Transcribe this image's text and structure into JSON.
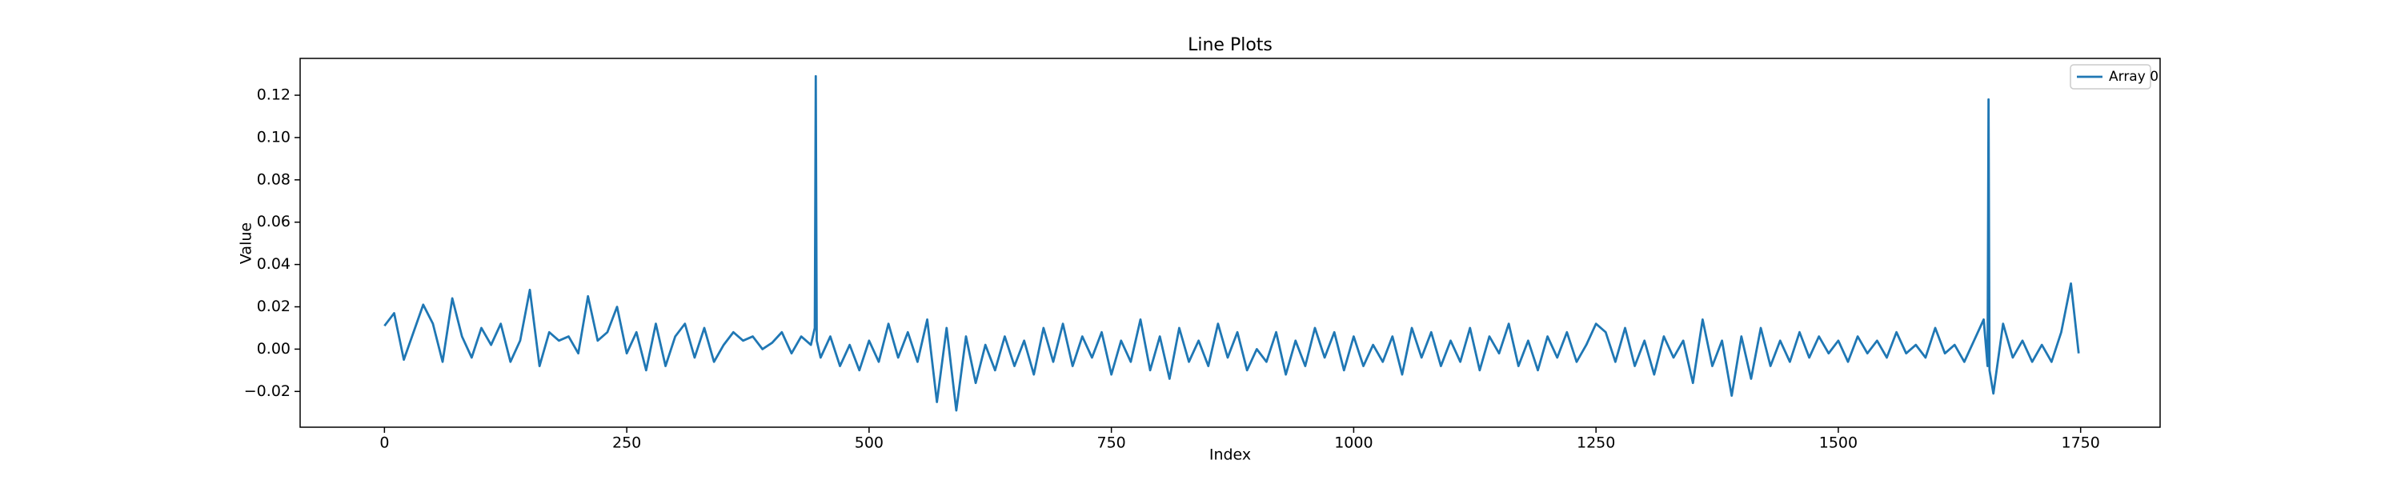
{
  "chart_data": {
    "type": "line",
    "title": "Line Plots",
    "x_label": "Index",
    "y_label": "Value",
    "xlim": [
      -87,
      1832
    ],
    "ylim": [
      -0.0369,
      0.1374
    ],
    "xticks": [
      0,
      250,
      500,
      750,
      1000,
      1250,
      1500,
      1750
    ],
    "yticks": [
      {
        "value": -0.02,
        "label": "−0.02"
      },
      {
        "value": 0,
        "label": "0.00"
      },
      0.02,
      0.04,
      0.06,
      0.08,
      {
        "value": 0.1,
        "label": "0.10"
      },
      0.12
    ],
    "legend": "upper right",
    "grid": false,
    "x": [
      0,
      10,
      20,
      30,
      40,
      50,
      60,
      70,
      80,
      90,
      100,
      110,
      120,
      130,
      140,
      150,
      160,
      170,
      180,
      190,
      200,
      210,
      220,
      230,
      240,
      250,
      260,
      270,
      280,
      290,
      300,
      310,
      320,
      330,
      340,
      350,
      360,
      370,
      380,
      390,
      400,
      410,
      420,
      430,
      440,
      444,
      445,
      446,
      450,
      460,
      470,
      480,
      490,
      500,
      510,
      520,
      530,
      540,
      550,
      560,
      570,
      580,
      590,
      600,
      610,
      620,
      630,
      640,
      650,
      660,
      670,
      680,
      690,
      700,
      710,
      720,
      730,
      740,
      750,
      760,
      770,
      780,
      790,
      800,
      810,
      820,
      830,
      840,
      850,
      860,
      870,
      880,
      890,
      900,
      910,
      920,
      930,
      940,
      950,
      960,
      970,
      980,
      990,
      1000,
      1010,
      1020,
      1030,
      1040,
      1050,
      1060,
      1070,
      1080,
      1090,
      1100,
      1110,
      1120,
      1130,
      1140,
      1150,
      1160,
      1170,
      1180,
      1190,
      1200,
      1210,
      1220,
      1230,
      1240,
      1250,
      1260,
      1270,
      1280,
      1290,
      1300,
      1310,
      1320,
      1330,
      1340,
      1350,
      1360,
      1370,
      1380,
      1390,
      1400,
      1410,
      1420,
      1430,
      1440,
      1450,
      1460,
      1470,
      1480,
      1490,
      1500,
      1510,
      1520,
      1530,
      1540,
      1550,
      1560,
      1570,
      1580,
      1590,
      1600,
      1610,
      1620,
      1630,
      1640,
      1650,
      1654,
      1655,
      1656,
      1660,
      1670,
      1680,
      1690,
      1700,
      1710,
      1720,
      1730,
      1740,
      1748
    ],
    "series": [
      {
        "name": "Array 0",
        "color": "#1f77b4",
        "values": [
          0.011,
          0.017,
          -0.005,
          0.008,
          0.021,
          0.012,
          -0.006,
          0.024,
          0.006,
          -0.004,
          0.01,
          0.002,
          0.012,
          -0.006,
          0.004,
          0.028,
          -0.008,
          0.008,
          0.004,
          0.006,
          -0.002,
          0.025,
          0.004,
          0.008,
          0.02,
          -0.002,
          0.008,
          -0.01,
          0.012,
          -0.008,
          0.006,
          0.012,
          -0.004,
          0.01,
          -0.006,
          0.002,
          0.008,
          0.004,
          0.006,
          0.0,
          0.003,
          0.008,
          -0.002,
          0.006,
          0.002,
          0.01,
          0.129,
          0.004,
          -0.004,
          0.006,
          -0.008,
          0.002,
          -0.01,
          0.004,
          -0.006,
          0.012,
          -0.004,
          0.008,
          -0.006,
          0.014,
          -0.025,
          0.01,
          -0.029,
          0.006,
          -0.016,
          0.002,
          -0.01,
          0.006,
          -0.008,
          0.004,
          -0.012,
          0.01,
          -0.006,
          0.012,
          -0.008,
          0.006,
          -0.004,
          0.008,
          -0.012,
          0.004,
          -0.006,
          0.014,
          -0.01,
          0.006,
          -0.014,
          0.01,
          -0.006,
          0.004,
          -0.008,
          0.012,
          -0.004,
          0.008,
          -0.01,
          0.0,
          -0.006,
          0.008,
          -0.012,
          0.004,
          -0.008,
          0.01,
          -0.004,
          0.008,
          -0.01,
          0.006,
          -0.008,
          0.002,
          -0.006,
          0.006,
          -0.012,
          0.01,
          -0.004,
          0.008,
          -0.008,
          0.004,
          -0.006,
          0.01,
          -0.01,
          0.006,
          -0.002,
          0.012,
          -0.008,
          0.004,
          -0.01,
          0.006,
          -0.004,
          0.008,
          -0.006,
          0.002,
          0.012,
          0.008,
          -0.006,
          0.01,
          -0.008,
          0.004,
          -0.012,
          0.006,
          -0.004,
          0.004,
          -0.016,
          0.014,
          -0.008,
          0.004,
          -0.022,
          0.006,
          -0.014,
          0.01,
          -0.008,
          0.004,
          -0.006,
          0.008,
          -0.004,
          0.006,
          -0.002,
          0.004,
          -0.006,
          0.006,
          -0.002,
          0.004,
          -0.004,
          0.008,
          -0.002,
          0.002,
          -0.004,
          0.01,
          -0.002,
          0.002,
          -0.006,
          0.004,
          0.014,
          -0.008,
          0.118,
          -0.01,
          -0.021,
          0.012,
          -0.004,
          0.004,
          -0.006,
          0.002,
          -0.006,
          0.008,
          0.031,
          -0.002
        ]
      }
    ]
  }
}
